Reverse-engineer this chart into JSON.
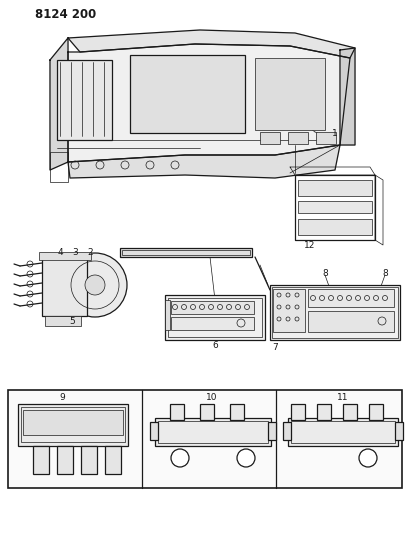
{
  "title": "8124 200",
  "bg": "#ffffff",
  "lc": "#1a1a1a",
  "figsize": [
    4.1,
    5.33
  ],
  "dpi": 100,
  "gray": "#888888",
  "lightgray": "#cccccc",
  "midgray": "#aaaaaa"
}
